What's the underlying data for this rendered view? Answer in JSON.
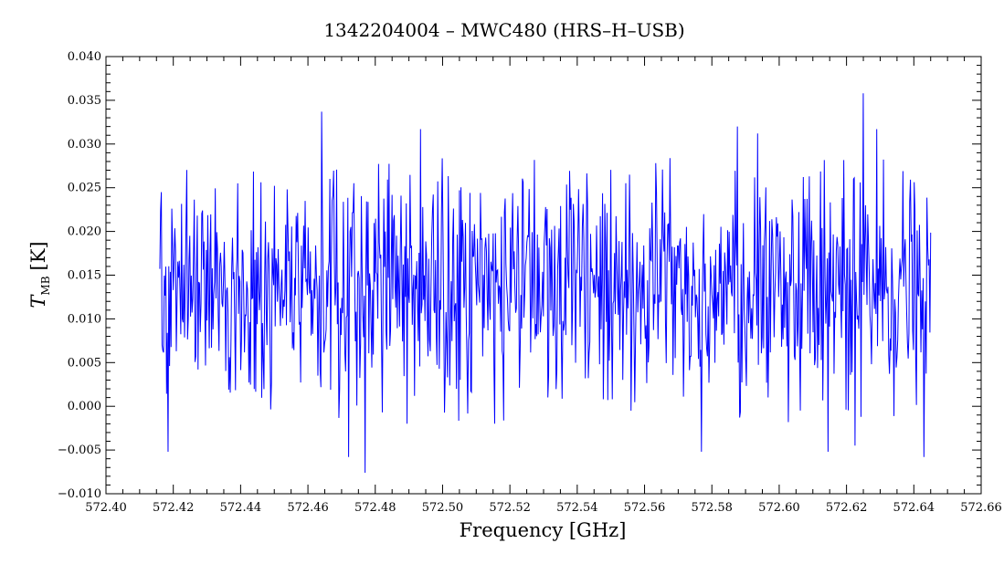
{
  "chart_data": {
    "type": "line",
    "title": "1342204004 – MWC480 (HRS–H–USB)",
    "xlabel": "Frequency [GHz]",
    "ylabel": {
      "main": "T",
      "subscript": "MB",
      "unit": "[K]"
    },
    "xlim": [
      572.4,
      572.66
    ],
    "ylim": [
      -0.01,
      0.04
    ],
    "x_ticks": [
      "572.40",
      "572.42",
      "572.44",
      "572.46",
      "572.48",
      "572.50",
      "572.52",
      "572.54",
      "572.56",
      "572.58",
      "572.60",
      "572.62",
      "572.64",
      "572.66"
    ],
    "y_ticks": [
      "−0.010",
      "−0.005",
      "0.000",
      "0.005",
      "0.010",
      "0.015",
      "0.020",
      "0.025",
      "0.030",
      "0.035",
      "0.040"
    ],
    "grid": false,
    "legend": "none",
    "series": [
      {
        "color": "#0000ff",
        "x_start": 572.416,
        "x_end": 572.645,
        "mean": 0.0135,
        "stdev": 0.0065,
        "n_points": 1030,
        "features": [
          {
            "x": 572.4165,
            "y": 0.0245
          },
          {
            "x": 572.4185,
            "y": -0.0052
          },
          {
            "x": 572.464,
            "y": 0.0337
          },
          {
            "x": 572.472,
            "y": -0.0058
          },
          {
            "x": 572.477,
            "y": -0.0076
          },
          {
            "x": 572.4935,
            "y": 0.0317
          },
          {
            "x": 572.5555,
            "y": 0.0265
          },
          {
            "x": 572.556,
            "y": -0.0005
          },
          {
            "x": 572.577,
            "y": -0.0052
          },
          {
            "x": 572.5875,
            "y": 0.032
          },
          {
            "x": 572.5935,
            "y": 0.0312
          },
          {
            "x": 572.6145,
            "y": -0.0052
          },
          {
            "x": 572.6225,
            "y": -0.0045
          },
          {
            "x": 572.625,
            "y": 0.0358
          },
          {
            "x": 572.629,
            "y": 0.0317
          },
          {
            "x": 572.643,
            "y": -0.0058
          }
        ]
      }
    ]
  }
}
